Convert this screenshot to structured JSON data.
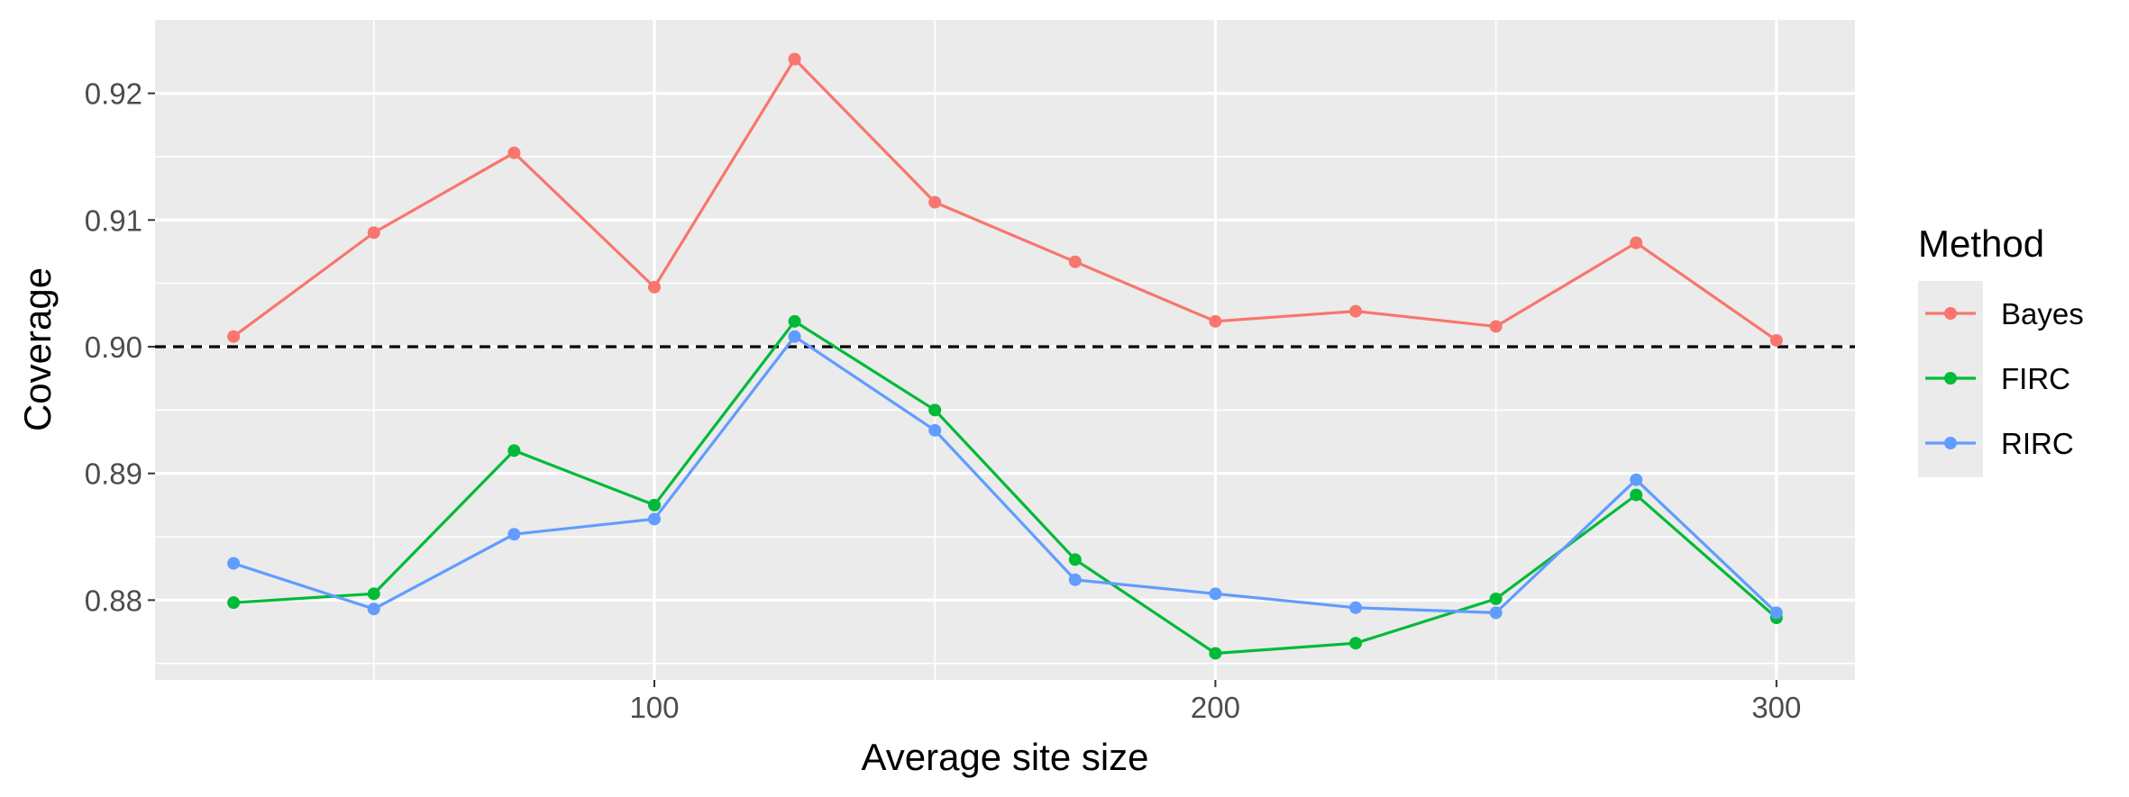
{
  "chart_data": {
    "type": "line",
    "title": "",
    "xlabel": "Average site size",
    "ylabel": "Coverage",
    "xlim": [
      11,
      314
    ],
    "ylim": [
      0.8737,
      0.9258
    ],
    "xticks": [
      100,
      200,
      300
    ],
    "xtick_labels": [
      "100",
      "200",
      "300"
    ],
    "yticks": [
      0.88,
      0.89,
      0.9,
      0.91,
      0.92
    ],
    "ytick_labels": [
      "0.88",
      "0.89",
      "0.90",
      "0.91",
      "0.92"
    ],
    "x": [
      25,
      50,
      75,
      100,
      125,
      150,
      175,
      200,
      225,
      250,
      275,
      300
    ],
    "reference_line": {
      "y": 0.9,
      "style": "dashed",
      "color": "#000000"
    },
    "grid": true,
    "panel_background": "#ebebeb",
    "legend_title": "Method",
    "legend_position": "right",
    "series": [
      {
        "name": "Bayes",
        "color": "#f8766d",
        "values": [
          0.9008,
          0.909,
          0.9153,
          0.9047,
          0.9227,
          0.9114,
          0.9067,
          0.902,
          0.9028,
          0.9016,
          0.9082,
          0.9005
        ]
      },
      {
        "name": "FIRC",
        "color": "#00ba38",
        "values": [
          0.8798,
          0.8805,
          0.8918,
          0.8875,
          0.902,
          0.895,
          0.8832,
          0.8758,
          0.8766,
          0.8801,
          0.8883,
          0.8786
        ]
      },
      {
        "name": "RIRC",
        "color": "#619cff",
        "values": [
          0.8829,
          0.8793,
          0.8852,
          0.8864,
          0.9008,
          0.8934,
          0.8816,
          0.8805,
          0.8794,
          0.879,
          0.8895,
          0.879
        ]
      }
    ]
  }
}
